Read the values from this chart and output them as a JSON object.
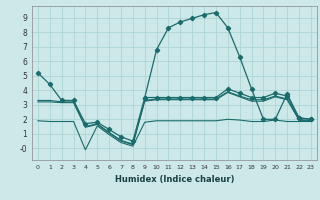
{
  "xlabel": "Humidex (Indice chaleur)",
  "bg_color": "#cce8e8",
  "grid_color": "#aed4d4",
  "line_color": "#1a6b6b",
  "x_ticks": [
    0,
    1,
    2,
    3,
    4,
    5,
    6,
    7,
    8,
    9,
    10,
    11,
    12,
    13,
    14,
    15,
    16,
    17,
    18,
    19,
    20,
    21,
    22,
    23
  ],
  "ylim": [
    -0.8,
    9.8
  ],
  "xlim": [
    -0.5,
    23.5
  ],
  "curve_x": [
    9,
    10,
    11,
    12,
    13,
    14,
    15,
    16,
    17,
    18,
    19,
    20,
    21,
    22,
    23
  ],
  "curve_y": [
    3.5,
    6.8,
    8.3,
    8.7,
    8.95,
    9.2,
    9.35,
    8.3,
    6.3,
    4.1,
    2.0,
    2.0,
    3.75,
    2.1,
    2.0
  ],
  "line1_x": [
    0,
    1,
    2,
    3,
    4,
    5,
    6,
    7,
    8,
    9,
    10,
    11,
    12,
    13,
    14,
    15,
    16,
    17,
    18,
    19,
    20,
    21,
    22,
    23
  ],
  "line1_y": [
    5.2,
    4.4,
    3.3,
    3.3,
    1.7,
    1.8,
    1.3,
    0.8,
    0.5,
    3.5,
    3.5,
    3.5,
    3.5,
    3.5,
    3.5,
    3.5,
    4.1,
    3.8,
    3.5,
    3.5,
    3.8,
    3.6,
    2.1,
    2.0
  ],
  "line2_x": [
    0,
    1,
    2,
    3,
    4,
    5,
    6,
    7,
    8,
    9,
    10,
    11,
    12,
    13,
    14,
    15,
    16,
    17,
    18,
    19,
    20,
    21,
    22,
    23
  ],
  "line2_y": [
    3.3,
    3.3,
    3.2,
    3.2,
    1.5,
    1.7,
    1.1,
    0.55,
    0.3,
    3.3,
    3.4,
    3.4,
    3.4,
    3.4,
    3.4,
    3.4,
    3.9,
    3.6,
    3.35,
    3.35,
    3.6,
    3.4,
    2.0,
    1.9
  ],
  "line3_x": [
    0,
    1,
    2,
    3,
    4,
    5,
    6,
    7,
    8,
    9,
    10,
    11,
    12,
    13,
    14,
    15,
    16,
    17,
    18,
    19,
    20,
    21,
    22,
    23
  ],
  "line3_y": [
    3.2,
    3.2,
    3.15,
    3.15,
    1.45,
    1.65,
    1.05,
    0.5,
    0.25,
    3.25,
    3.35,
    3.35,
    3.35,
    3.35,
    3.35,
    3.35,
    3.85,
    3.55,
    3.25,
    3.25,
    3.55,
    3.35,
    1.95,
    1.85
  ],
  "line4_x": [
    0,
    1,
    2,
    3,
    4,
    5,
    6,
    7,
    8,
    9,
    10,
    11,
    12,
    13,
    14,
    15,
    16,
    17,
    18,
    19,
    20,
    21,
    22,
    23
  ],
  "line4_y": [
    1.9,
    1.85,
    1.85,
    1.85,
    -0.1,
    1.55,
    0.95,
    0.4,
    0.15,
    1.8,
    1.9,
    1.9,
    1.9,
    1.9,
    1.9,
    1.9,
    2.0,
    1.95,
    1.85,
    1.85,
    1.95,
    1.85,
    1.85,
    1.85
  ],
  "yticks": [
    0,
    1,
    2,
    3,
    4,
    5,
    6,
    7,
    8,
    9
  ],
  "ytick_labels": [
    "-0",
    "1",
    "2",
    "3",
    "4",
    "5",
    "6",
    "7",
    "8",
    "9"
  ]
}
